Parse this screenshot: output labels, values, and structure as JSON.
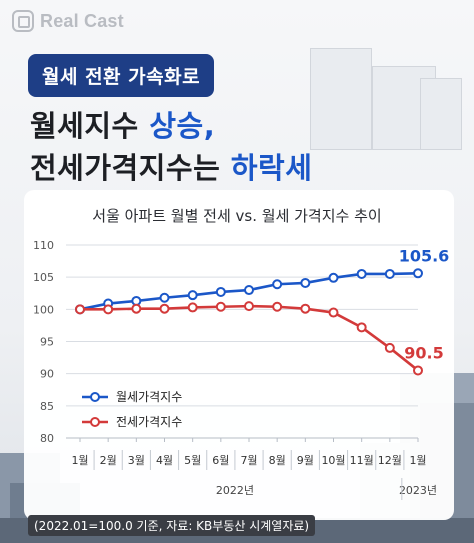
{
  "brand": {
    "name": "Real Cast",
    "icon": "realcast-logo-icon"
  },
  "tag": "월세 전환 가속화로",
  "headline": {
    "line1_prefix": "월세지수 ",
    "line1_accent": "상승,",
    "line2_prefix": "전세가격지수는 ",
    "line2_accent": "하락세"
  },
  "colors": {
    "monthly": "#1b57c8",
    "jeonse": "#d33a3a",
    "accent": "#1b57c8",
    "pill": "#1e3e86"
  },
  "chart_data": {
    "type": "line",
    "title": "서울 아파트 월별 전세 vs. 월세 가격지수 추이",
    "categories": [
      "1월",
      "2월",
      "3월",
      "4월",
      "5월",
      "6월",
      "7월",
      "8월",
      "9월",
      "10월",
      "11월",
      "12월",
      "1월"
    ],
    "year_labels": [
      {
        "label": "2022년",
        "span_start": 0,
        "span_end": 11
      },
      {
        "label": "2023년",
        "span_start": 12,
        "span_end": 12
      }
    ],
    "ylim": [
      80,
      110
    ],
    "yticks": [
      80,
      85,
      90,
      95,
      100,
      105,
      110
    ],
    "grid": true,
    "legend_position": "bottom-left",
    "series": [
      {
        "name": "월세가격지수",
        "color": "#1b57c8",
        "values": [
          100.0,
          100.9,
          101.3,
          101.8,
          102.2,
          102.7,
          103.0,
          103.9,
          104.1,
          104.9,
          105.5,
          105.5,
          105.6
        ],
        "end_label": "105.6"
      },
      {
        "name": "전세가격지수",
        "color": "#d33a3a",
        "values": [
          100.0,
          100.0,
          100.1,
          100.1,
          100.3,
          100.4,
          100.5,
          100.4,
          100.1,
          99.5,
          97.2,
          94.0,
          90.5
        ],
        "end_label": "90.5"
      }
    ]
  },
  "footnote": "(2022.01=100.0 기준, 자료: KB부동산 시계열자료)"
}
